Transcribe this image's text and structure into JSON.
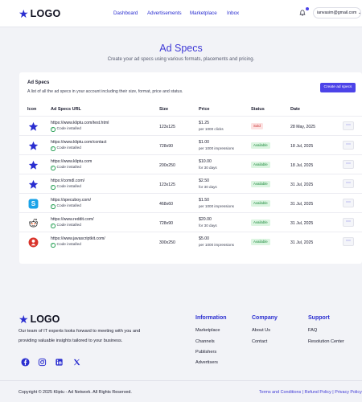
{
  "header": {
    "logo_text": "LOGO",
    "nav": [
      "Dashboard",
      "Advertisements",
      "Marketplace",
      "Inbox"
    ],
    "user_email": "ianvasim@gmail.com ⌄"
  },
  "hero": {
    "title": "Ad Specs",
    "subtitle": "Create your ad specs using various formats, placements and pricing."
  },
  "card": {
    "title": "Ad Specs",
    "description": "A list of all the ad specs in your account including their size, format, price and status.",
    "create_label": "Create ad specs",
    "columns": [
      "Icon",
      "Ad Specs URL",
      "Size",
      "Price",
      "Status",
      "Date"
    ],
    "installed_label": "Code installed",
    "more_label": "⋯",
    "rows": [
      {
        "icon": "blue-star-icon",
        "url": "https://www.kliptu.com/test.html",
        "size": "123x125",
        "price": "$1.25",
        "period": "per 1000 clicks",
        "status": "Sold",
        "status_kind": "sold",
        "date": "28 May, 2025"
      },
      {
        "icon": "blue-star-icon",
        "url": "https://www.kliptu.com/contact",
        "size": "728x90",
        "price": "$1.00",
        "period": "per 1000 impressions",
        "status": "Available",
        "status_kind": "available",
        "date": "18 Jul, 2025"
      },
      {
        "icon": "blue-star-icon",
        "url": "https://www.kliptu.com",
        "size": "200x250",
        "price": "$10.00",
        "period": "for 30 days",
        "status": "Available",
        "status_kind": "available",
        "date": "18 Jul, 2025"
      },
      {
        "icon": "blue-star-icon",
        "url": "https://comdl.com/",
        "size": "123x125",
        "price": "$2.50",
        "period": "for 30 days",
        "status": "Available",
        "status_kind": "available",
        "date": "31 Jul, 2025"
      },
      {
        "icon": "skype-s-icon",
        "url": "https://specuboy.com/",
        "size": "468x60",
        "price": "$1.50",
        "period": "per 1000 impressions",
        "status": "Available",
        "status_kind": "available",
        "date": "31 Jul, 2025"
      },
      {
        "icon": "reddit-alien-icon",
        "url": "https://www.reddit.com/",
        "size": "728x90",
        "price": "$20.00",
        "period": "for 30 days",
        "status": "Available",
        "status_kind": "available",
        "date": "31 Jul, 2025"
      },
      {
        "icon": "javascriptkit-icon",
        "url": "https://www.javascriptkit.com/",
        "size": "300x250",
        "price": "$5.00",
        "period": "per 1000 impressions",
        "status": "Available",
        "status_kind": "available",
        "date": "31 Jul, 2025"
      }
    ]
  },
  "footer": {
    "logo_text": "LOGO",
    "desc_line1": "Our team of IT experts looks forward to meeting with you and",
    "desc_line2": "providing valuable insights tailored to your business.",
    "social_icons": [
      "facebook-icon",
      "instagram-icon",
      "linkedin-icon",
      "x-icon"
    ],
    "columns": [
      {
        "heading": "Information",
        "links": [
          "Marketplace",
          "Channels",
          "Publishers",
          "Advertisers"
        ]
      },
      {
        "heading": "Company",
        "links": [
          "About Us",
          "Contact"
        ]
      },
      {
        "heading": "Support",
        "links": [
          "FAQ",
          "Resolution Center"
        ]
      }
    ],
    "copyright": "Copyright © 2025 Kliptu - Ad Network. All Rights Reserved.",
    "legal_links": [
      "Terms and Conditions",
      "Refund Policy",
      "Privacy Policy"
    ]
  },
  "colors": {
    "accent": "#4c43e8",
    "title_blue": "#3f3ad6",
    "sold_bg": "#fde2e2",
    "available_bg": "#dcf5e1"
  }
}
